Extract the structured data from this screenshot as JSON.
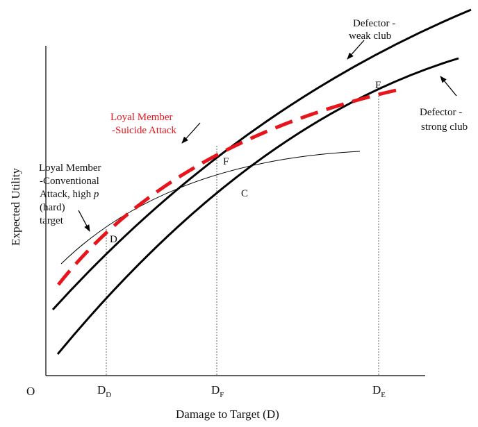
{
  "diagram": {
    "origin_label": "O",
    "x_axis_title": "Damage to Target (D)",
    "y_axis_title": "Expected Utility",
    "x_ticks": [
      {
        "main": "D",
        "sub": "D"
      },
      {
        "main": "D",
        "sub": "F"
      },
      {
        "main": "D",
        "sub": "E"
      }
    ],
    "points": {
      "D": "D",
      "F": "F",
      "C": "C",
      "E": "E"
    },
    "curve_labels": {
      "weak_club": [
        "Defector -",
        "weak club"
      ],
      "strong_club": [
        "Defector -",
        "strong club"
      ],
      "suicide": [
        "Loyal Member",
        "-Suicide Attack"
      ],
      "conventional": [
        "Loyal Member",
        "-Conventional",
        "Attack, high ",
        "p",
        "(hard)",
        "target"
      ]
    },
    "colors": {
      "suicide_curve": "#e8141c",
      "curves": "#000000"
    }
  }
}
